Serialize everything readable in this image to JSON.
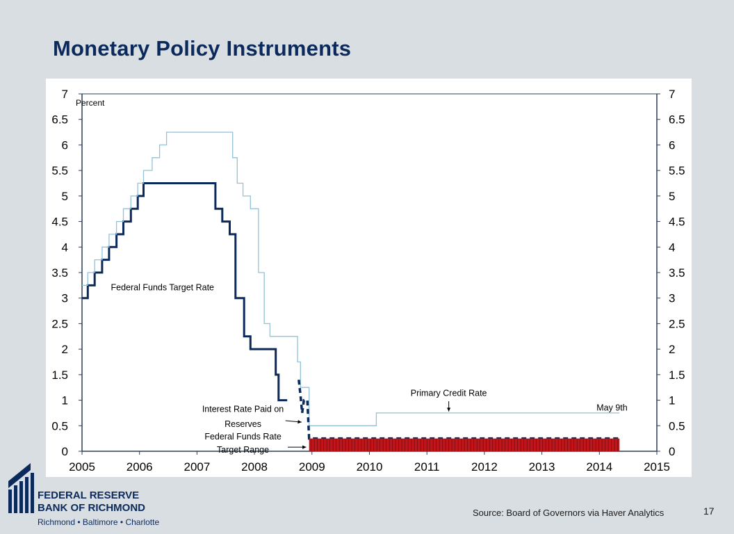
{
  "slide": {
    "title": "Monetary Policy Instruments",
    "source": "Source: Board of Governors via Haver Analytics",
    "page_number": "17"
  },
  "logo": {
    "name": "FEDERAL RESERVE BANK OF RICHMOND",
    "cities": "Richmond • Baltimore • Charlotte",
    "color": "#0b2a5b"
  },
  "chart_data": {
    "type": "line",
    "ylabel": "Percent",
    "xlim": [
      2005,
      2015
    ],
    "ylim": [
      0,
      7
    ],
    "x_ticks": [
      "2005",
      "2006",
      "2007",
      "2008",
      "2009",
      "2010",
      "2011",
      "2012",
      "2013",
      "2014",
      "2015"
    ],
    "y_ticks": [
      "0",
      "0.5",
      "1",
      "1.5",
      "2",
      "2.5",
      "3",
      "3.5",
      "4",
      "4.5",
      "5",
      "5.5",
      "6",
      "6.5",
      "7"
    ],
    "grid": false,
    "series": [
      {
        "name": "Federal Funds Target Rate",
        "color": "#0b2a5b",
        "style": "solid-thick",
        "points": [
          [
            2005.0,
            3.0
          ],
          [
            2005.1,
            3.0
          ],
          [
            2005.1,
            3.25
          ],
          [
            2005.22,
            3.25
          ],
          [
            2005.22,
            3.5
          ],
          [
            2005.35,
            3.5
          ],
          [
            2005.35,
            3.75
          ],
          [
            2005.47,
            3.75
          ],
          [
            2005.47,
            4.0
          ],
          [
            2005.6,
            4.0
          ],
          [
            2005.6,
            4.25
          ],
          [
            2005.72,
            4.25
          ],
          [
            2005.72,
            4.5
          ],
          [
            2005.85,
            4.5
          ],
          [
            2005.85,
            4.75
          ],
          [
            2005.97,
            4.75
          ],
          [
            2005.97,
            5.0
          ],
          [
            2006.07,
            5.0
          ],
          [
            2006.07,
            5.25
          ],
          [
            2007.32,
            5.25
          ],
          [
            2007.32,
            4.75
          ],
          [
            2007.44,
            4.75
          ],
          [
            2007.44,
            4.5
          ],
          [
            2007.57,
            4.5
          ],
          [
            2007.57,
            4.25
          ],
          [
            2007.67,
            4.25
          ],
          [
            2007.67,
            3.0
          ],
          [
            2007.82,
            3.0
          ],
          [
            2007.82,
            2.25
          ],
          [
            2007.93,
            2.25
          ],
          [
            2007.93,
            2.0
          ],
          [
            2008.37,
            2.0
          ],
          [
            2008.37,
            1.5
          ],
          [
            2008.42,
            1.5
          ],
          [
            2008.42,
            1.0
          ],
          [
            2008.57,
            1.0
          ]
        ]
      },
      {
        "name": "Primary Credit Rate",
        "color": "#93c1d6",
        "style": "solid-thin",
        "points": [
          [
            2005.0,
            3.25
          ],
          [
            2005.1,
            3.25
          ],
          [
            2005.1,
            3.5
          ],
          [
            2005.22,
            3.5
          ],
          [
            2005.22,
            3.75
          ],
          [
            2005.35,
            3.75
          ],
          [
            2005.35,
            4.0
          ],
          [
            2005.47,
            4.0
          ],
          [
            2005.47,
            4.25
          ],
          [
            2005.6,
            4.25
          ],
          [
            2005.6,
            4.5
          ],
          [
            2005.72,
            4.5
          ],
          [
            2005.72,
            4.75
          ],
          [
            2005.85,
            4.75
          ],
          [
            2005.85,
            5.0
          ],
          [
            2005.97,
            5.0
          ],
          [
            2005.97,
            5.25
          ],
          [
            2006.07,
            5.25
          ],
          [
            2006.07,
            5.5
          ],
          [
            2006.22,
            5.5
          ],
          [
            2006.22,
            5.75
          ],
          [
            2006.35,
            5.75
          ],
          [
            2006.35,
            6.0
          ],
          [
            2006.47,
            6.0
          ],
          [
            2006.47,
            6.25
          ],
          [
            2007.62,
            6.25
          ],
          [
            2007.62,
            5.75
          ],
          [
            2007.7,
            5.75
          ],
          [
            2007.7,
            5.25
          ],
          [
            2007.8,
            5.25
          ],
          [
            2007.8,
            5.0
          ],
          [
            2007.93,
            5.0
          ],
          [
            2007.93,
            4.75
          ],
          [
            2008.07,
            4.75
          ],
          [
            2008.07,
            3.5
          ],
          [
            2008.17,
            3.5
          ],
          [
            2008.17,
            2.5
          ],
          [
            2008.27,
            2.5
          ],
          [
            2008.27,
            2.25
          ],
          [
            2008.75,
            2.25
          ],
          [
            2008.75,
            1.75
          ],
          [
            2008.8,
            1.75
          ],
          [
            2008.8,
            1.25
          ],
          [
            2008.95,
            1.25
          ],
          [
            2008.95,
            0.5
          ],
          [
            2010.12,
            0.5
          ],
          [
            2010.12,
            0.75
          ],
          [
            2014.35,
            0.75
          ]
        ]
      },
      {
        "name": "Interest Rate Paid on Reserves",
        "color": "#0b2a5b",
        "style": "dashed-thick",
        "points": [
          [
            2008.77,
            1.4
          ],
          [
            2008.8,
            1.1
          ],
          [
            2008.83,
            0.75
          ],
          [
            2008.86,
            1.0
          ],
          [
            2008.92,
            1.0
          ],
          [
            2008.95,
            0.25
          ],
          [
            2014.35,
            0.25
          ]
        ]
      },
      {
        "name": "Federal Funds Rate Target Range",
        "color": "#c0161b",
        "style": "band",
        "range": [
          0,
          0.25
        ],
        "x_range": [
          2008.95,
          2014.35
        ]
      }
    ],
    "annotations": [
      {
        "text": "Federal Funds Target Rate"
      },
      {
        "text": "Primary Credit Rate"
      },
      {
        "text": "Interest Rate Paid on"
      },
      {
        "text": "Reserves"
      },
      {
        "text": "Federal Funds Rate"
      },
      {
        "text": "Target Range"
      },
      {
        "text": "May 9th"
      }
    ]
  }
}
